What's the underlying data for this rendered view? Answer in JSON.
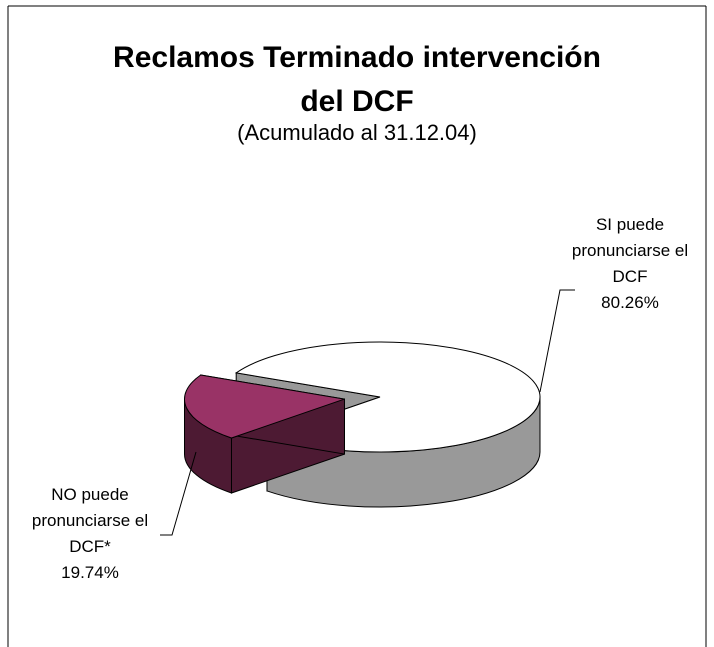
{
  "chart_data": {
    "type": "pie3d",
    "title": "Reclamos Terminado intervención del DCF",
    "subtitle": "(Acumulado al 31.12.04)",
    "categories": [
      "SI puede pronunciarse el DCF",
      "NO puede pronunciarse el DCF*"
    ],
    "values": [
      80.26,
      19.74
    ],
    "value_labels": [
      "80.26%",
      "19.74%"
    ],
    "colors": [
      "#ffffff",
      "#993366"
    ],
    "exploded": [
      false,
      true
    ]
  }
}
